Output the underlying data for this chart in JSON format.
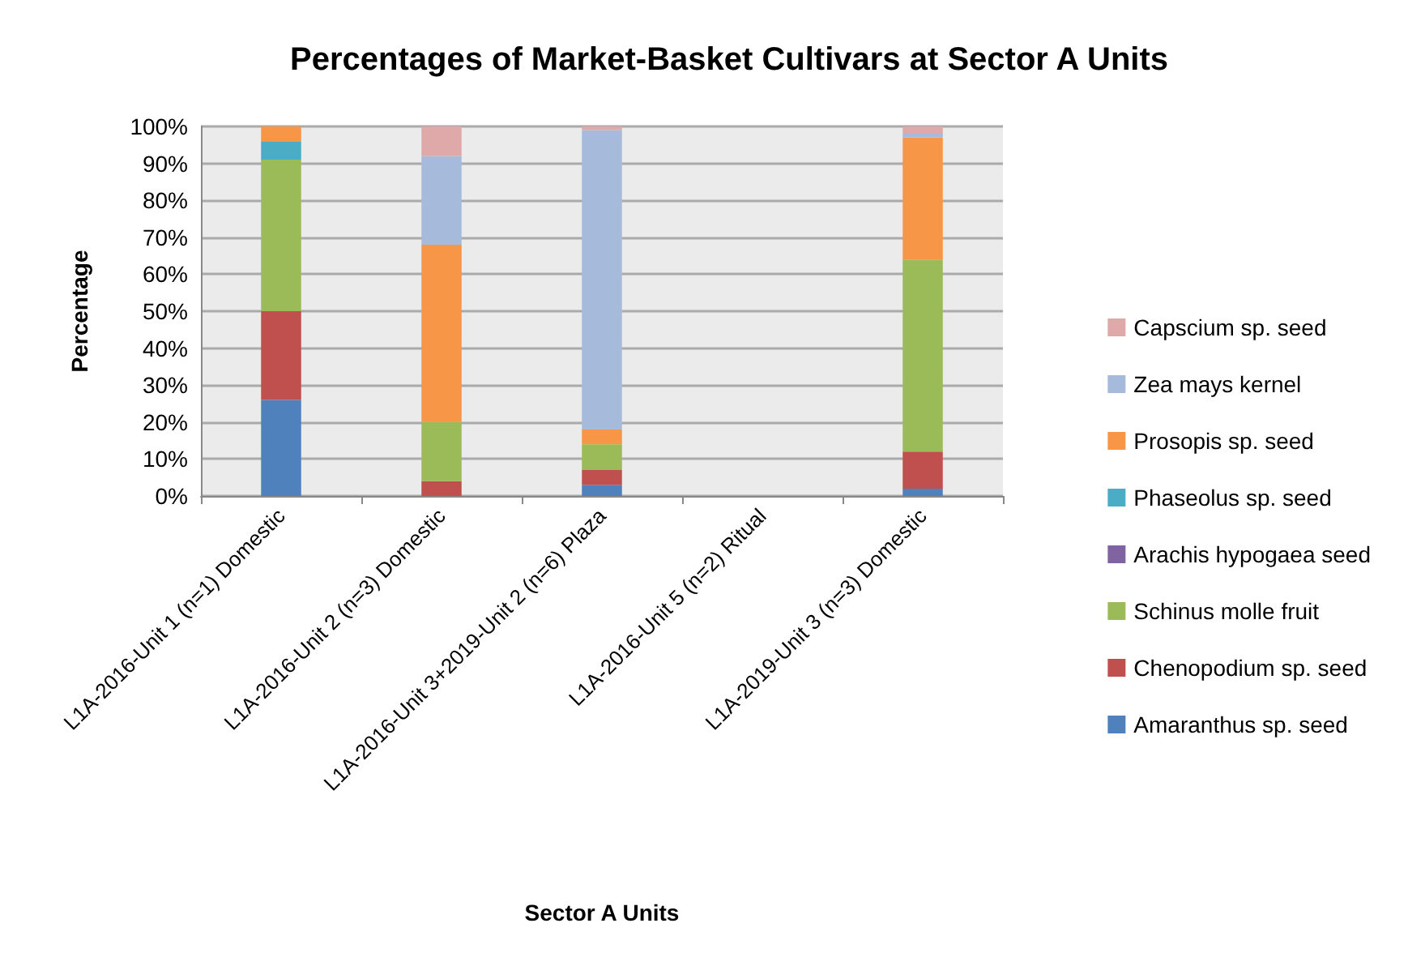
{
  "chart_data": {
    "type": "bar",
    "stacked": true,
    "title": "Percentages of Market-Basket Cultivars at Sector A Units",
    "xlabel": "Sector A Units",
    "ylabel": "Percentage",
    "categories": [
      "L1A-2016-Unit 1 (n=1) Domestic",
      "L1A-2016-Unit 2 (n=3) Domestic",
      "L1A-2016-Unit 3+2019-Unit 2 (n=6) Plaza",
      "L1A-2016-Unit 5 (n=2) Ritual",
      "L1A-2019-Unit 3 (n=3) Domestic"
    ],
    "series": [
      {
        "name": "Amaranthus sp. seed",
        "color": "#4f81bd",
        "values": [
          26,
          0,
          3,
          null,
          2
        ]
      },
      {
        "name": "Chenopodium sp. seed",
        "color": "#c0504d",
        "values": [
          24,
          4,
          4,
          null,
          10
        ]
      },
      {
        "name": "Schinus molle fruit",
        "color": "#9bbb59",
        "values": [
          41,
          16,
          7,
          null,
          52
        ]
      },
      {
        "name": "Arachis hypogaea seed",
        "color": "#8064a2",
        "values": [
          0,
          0,
          0,
          null,
          0
        ]
      },
      {
        "name": "Phaseolus sp. seed",
        "color": "#4bacc6",
        "values": [
          5,
          0,
          0,
          null,
          0
        ]
      },
      {
        "name": "Prosopis sp. seed",
        "color": "#f79646",
        "values": [
          4,
          48,
          4,
          null,
          33
        ]
      },
      {
        "name": "Zea mays kernel",
        "color": "#a6bbdc",
        "values": [
          0,
          24,
          81,
          null,
          1
        ]
      },
      {
        "name": "Capscium sp. seed",
        "color": "#dea9a8",
        "values": [
          0,
          8,
          1,
          null,
          2
        ]
      }
    ],
    "ylim": [
      0,
      100
    ],
    "yticks": [
      {
        "value": 0,
        "label": "0%"
      },
      {
        "value": 10,
        "label": "10%"
      },
      {
        "value": 20,
        "label": "20%"
      },
      {
        "value": 30,
        "label": "30%"
      },
      {
        "value": 40,
        "label": "40%"
      },
      {
        "value": 50,
        "label": "50%"
      },
      {
        "value": 60,
        "label": "60%"
      },
      {
        "value": 70,
        "label": "70%"
      },
      {
        "value": 80,
        "label": "80%"
      },
      {
        "value": 90,
        "label": "90%"
      },
      {
        "value": 100,
        "label": "100%"
      }
    ],
    "grid": "y",
    "legend": "right"
  }
}
